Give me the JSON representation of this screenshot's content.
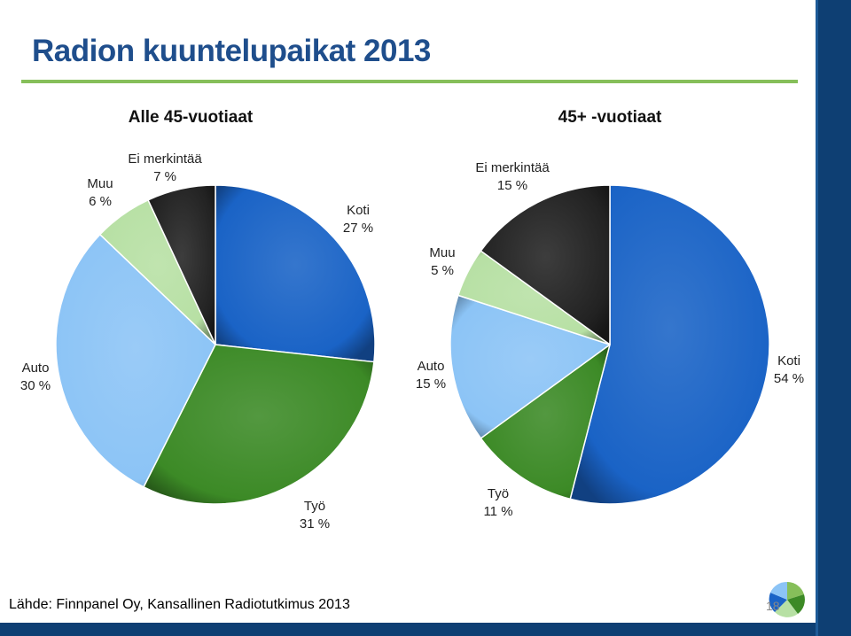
{
  "slide": {
    "title": "Radion kuuntelupaikat 2013",
    "source": "Lähde: Finnpanel Oy, Kansallinen Radiotutkimus 2013",
    "page_number": "18"
  },
  "colors": {
    "Koti": "#1a63c6",
    "Työ": "#3c8a26",
    "Auto": "#8cc4f6",
    "Muu": "#b7e0a4",
    "Ei merkintää": "#222222",
    "title": "#1f4e8c",
    "rule": "#86bf5a",
    "frame": "#0e3f73"
  },
  "chart_data": [
    {
      "type": "pie",
      "title": "Alle 45-vuotiaat",
      "slices": [
        {
          "category": "Koti",
          "value": 27,
          "label": "27 %"
        },
        {
          "category": "Työ",
          "value": 31,
          "label": "31 %"
        },
        {
          "category": "Auto",
          "value": 30,
          "label": "30 %"
        },
        {
          "category": "Muu",
          "value": 6,
          "label": "6 %"
        },
        {
          "category": "Ei merkintää",
          "value": 7,
          "label": "7 %"
        }
      ]
    },
    {
      "type": "pie",
      "title": "45+ -vuotiaat",
      "slices": [
        {
          "category": "Koti",
          "value": 54,
          "label": "54 %"
        },
        {
          "category": "Työ",
          "value": 11,
          "label": "11 %"
        },
        {
          "category": "Auto",
          "value": 15,
          "label": "15 %"
        },
        {
          "category": "Muu",
          "value": 5,
          "label": "5 %"
        },
        {
          "category": "Ei merkintää",
          "value": 15,
          "label": "15 %"
        }
      ]
    }
  ]
}
